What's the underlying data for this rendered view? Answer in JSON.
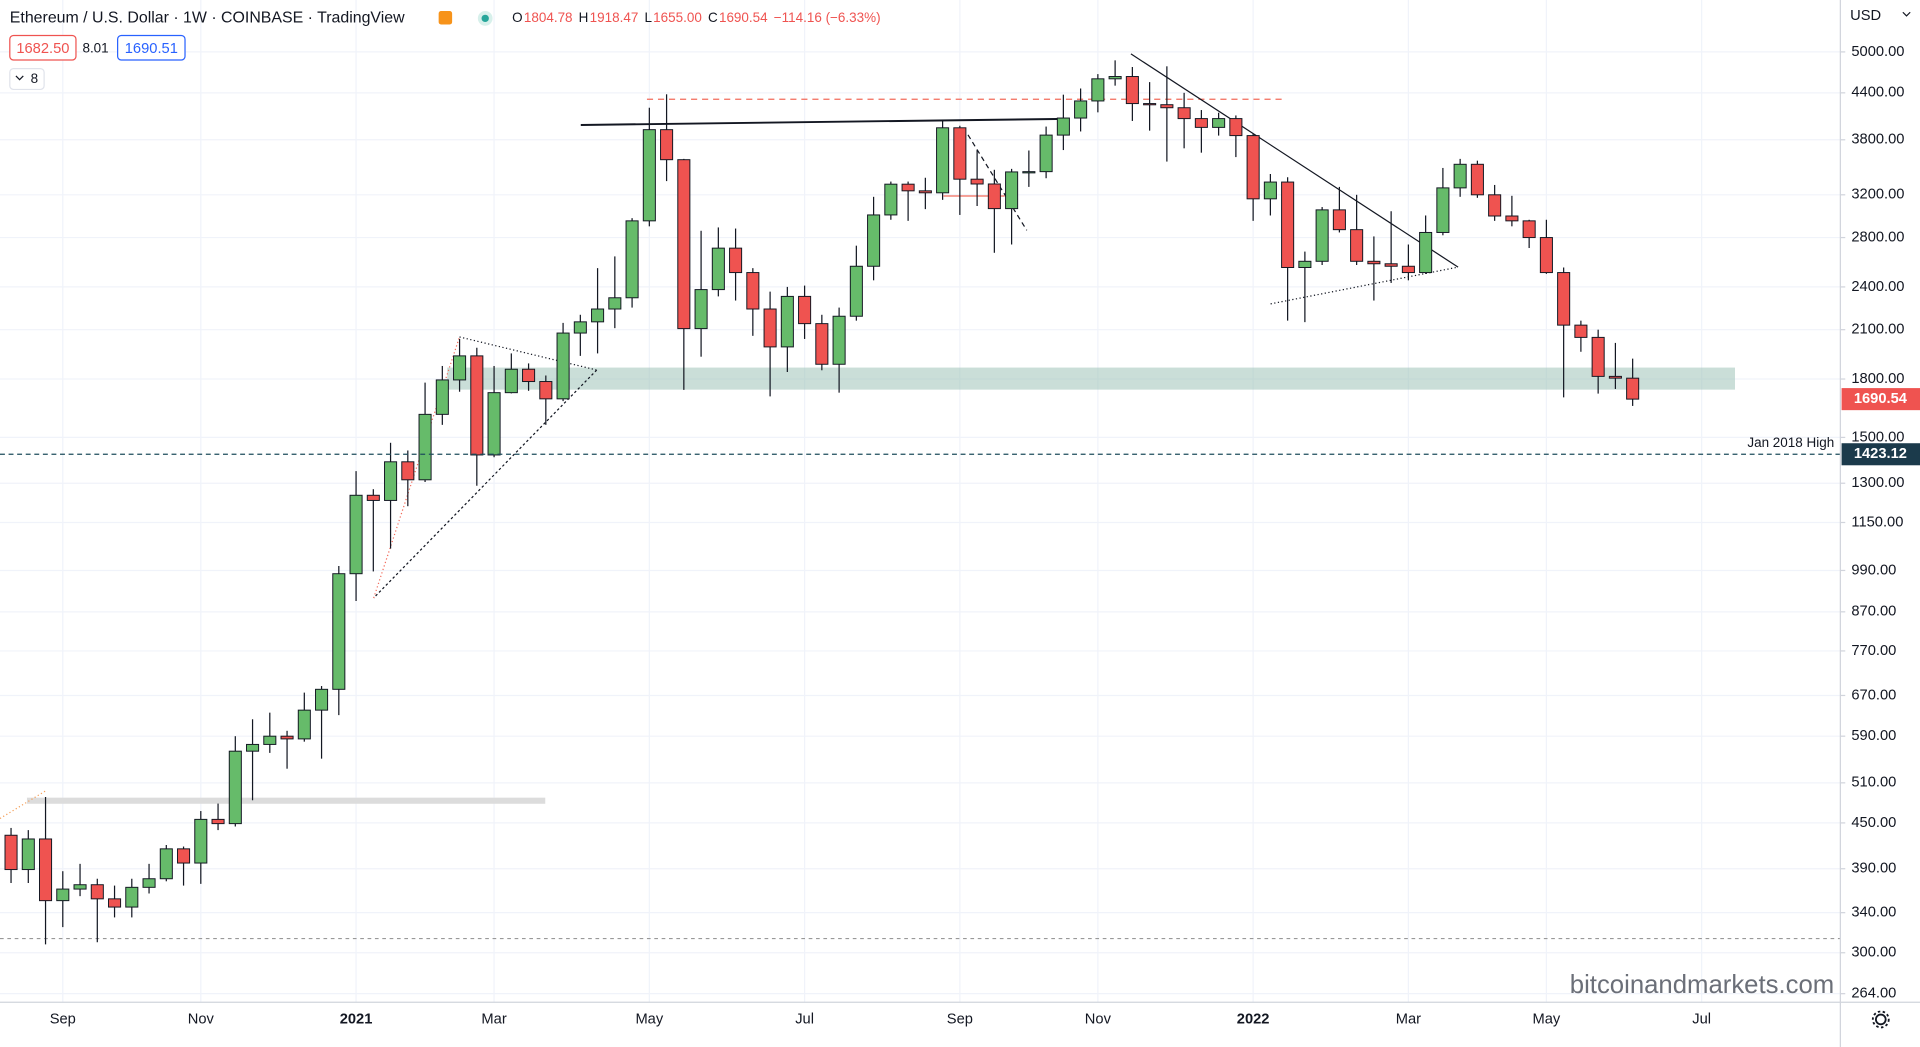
{
  "header": {
    "title": "Ethereum / U.S. Dollar · 1W · COINBASE · TradingView",
    "ohlc": [
      {
        "label": "O",
        "value": "1804.78"
      },
      {
        "label": "H",
        "value": "1918.47"
      },
      {
        "label": "L",
        "value": "1655.00"
      },
      {
        "label": "C",
        "value": "1690.54"
      }
    ],
    "change": "−114.16 (−6.33%)",
    "sell": "1682.50",
    "spread": "8.01",
    "buy": "1690.51",
    "indicators": "8",
    "currency": "USD",
    "watermark": "bitcoinandmarkets.com"
  },
  "chart_data": {
    "type": "candlestick",
    "log_scale": true,
    "grid": true,
    "up_color": "#66bb6a",
    "down_color": "#ef5350",
    "xlim": [
      -0.64,
      106.04
    ],
    "xticks": [
      {
        "value": 3,
        "label": "Sep"
      },
      {
        "value": 11,
        "label": "Nov"
      },
      {
        "value": 20,
        "label": "2021"
      },
      {
        "value": 28,
        "label": "Mar"
      },
      {
        "value": 37,
        "label": "May"
      },
      {
        "value": 46,
        "label": "Jul"
      },
      {
        "value": 55,
        "label": "Sep"
      },
      {
        "value": 63,
        "label": "Nov"
      },
      {
        "value": 72,
        "label": "2022"
      },
      {
        "value": 81,
        "label": "Mar"
      },
      {
        "value": 89,
        "label": "May"
      },
      {
        "value": 98,
        "label": "Jul"
      }
    ],
    "ylim": [
      257,
      5880
    ],
    "yticks": [
      {
        "value": 5000,
        "label": "5000.00"
      },
      {
        "value": 4400,
        "label": "4400.00"
      },
      {
        "value": 3800,
        "label": "3800.00"
      },
      {
        "value": 3200,
        "label": "3200.00"
      },
      {
        "value": 2800,
        "label": "2800.00"
      },
      {
        "value": 2400,
        "label": "2400.00"
      },
      {
        "value": 2100,
        "label": "2100.00"
      },
      {
        "value": 1800,
        "label": "1800.00"
      },
      {
        "value": 1500,
        "label": "1500.00"
      },
      {
        "value": 1300,
        "label": "1300.00"
      },
      {
        "value": 1150,
        "label": "1150.00"
      },
      {
        "value": 990,
        "label": "990.00"
      },
      {
        "value": 870,
        "label": "870.00"
      },
      {
        "value": 770,
        "label": "770.00"
      },
      {
        "value": 670,
        "label": "670.00"
      },
      {
        "value": 590,
        "label": "590.00"
      },
      {
        "value": 510,
        "label": "510.00"
      },
      {
        "value": 450,
        "label": "450.00"
      },
      {
        "value": 390,
        "label": "390.00"
      },
      {
        "value": 340,
        "label": "340.00"
      },
      {
        "value": 300,
        "label": "300.00"
      },
      {
        "value": 264,
        "label": "264.00"
      }
    ],
    "open": [
      433,
      389,
      428,
      353,
      366,
      371,
      355,
      346,
      368,
      378,
      415,
      397,
      455,
      449,
      563,
      575,
      590,
      585,
      640,
      683,
      980,
      1252,
      1232,
      1390,
      1314,
      1612,
      1795,
      1935,
      1420,
      1725,
      1856,
      1786,
      1692,
      2078,
      2152,
      2240,
      2320,
      2950,
      3922,
      3571,
      2107,
      2380,
      2709,
      2510,
      2240,
      1990,
      2330,
      2140,
      1885,
      2190,
      2560,
      3005,
      3308,
      3240,
      3220,
      3945,
      3360,
      3310,
      3065,
      3437,
      3440,
      3856,
      4067,
      4290,
      4597,
      4630,
      4255,
      4240,
      4200,
      4060,
      3950,
      4060,
      3850,
      3160,
      3330,
      2550,
      2600,
      3053,
      2870,
      2600,
      2580,
      2560,
      2510,
      2845,
      3270,
      3520,
      3200,
      2995,
      2950,
      2800,
      2510,
      2130,
      2050,
      1815,
      1804.78
    ],
    "high": [
      443,
      440,
      488,
      387,
      396,
      378,
      370,
      378,
      396,
      420,
      418,
      467,
      478,
      590,
      622,
      635,
      600,
      676,
      690,
      1004,
      1350,
      1276,
      1475,
      1440,
      1780,
      1875,
      2040,
      1985,
      1875,
      1950,
      1890,
      1820,
      2145,
      2200,
      2545,
      2640,
      2975,
      4200,
      4380,
      3580,
      2860,
      2890,
      2880,
      2545,
      2365,
      2400,
      2410,
      2200,
      2250,
      2730,
      3180,
      3335,
      3335,
      3375,
      4030,
      3970,
      3680,
      3460,
      3470,
      3675,
      3960,
      4375,
      4460,
      4665,
      4870,
      4770,
      4550,
      4780,
      4400,
      4170,
      4135,
      4100,
      3875,
      3415,
      3380,
      2680,
      3080,
      3280,
      3200,
      2810,
      3040,
      2740,
      3000,
      3480,
      3580,
      3560,
      3300,
      3190,
      2960,
      2960,
      2550,
      2160,
      2100,
      2015,
      1918.47
    ],
    "low": [
      373,
      373,
      308,
      325,
      358,
      310,
      335,
      335,
      361,
      375,
      370,
      372,
      440,
      445,
      483,
      560,
      533,
      580,
      550,
      630,
      900,
      987,
      1060,
      1210,
      1305,
      1560,
      1730,
      1290,
      1410,
      1721,
      1735,
      1560,
      1680,
      1935,
      1950,
      2110,
      2250,
      2900,
      3340,
      1740,
      1930,
      2330,
      2300,
      2060,
      1705,
      1840,
      2040,
      1850,
      1725,
      2160,
      2450,
      2960,
      2950,
      3060,
      3150,
      3005,
      3090,
      2670,
      2740,
      3280,
      3370,
      3680,
      3900,
      4140,
      4500,
      4030,
      3910,
      3550,
      3700,
      3650,
      3850,
      3600,
      2950,
      3000,
      2160,
      2150,
      2570,
      2845,
      2570,
      2300,
      2430,
      2450,
      2500,
      2820,
      3180,
      3170,
      2950,
      2900,
      2710,
      2500,
      1700,
      1960,
      1720,
      1745,
      1655.0
    ],
    "close": [
      389,
      428,
      353,
      366,
      371,
      355,
      346,
      368,
      378,
      415,
      397,
      455,
      449,
      563,
      575,
      590,
      585,
      640,
      683,
      980,
      1252,
      1232,
      1390,
      1314,
      1612,
      1795,
      1935,
      1420,
      1725,
      1856,
      1786,
      1692,
      2078,
      2152,
      2240,
      2320,
      2950,
      3922,
      3571,
      2107,
      2380,
      2709,
      2510,
      2240,
      1990,
      2330,
      2140,
      1885,
      2190,
      2560,
      3005,
      3308,
      3240,
      3220,
      3945,
      3360,
      3310,
      3065,
      3437,
      3440,
      3856,
      4067,
      4290,
      4597,
      4630,
      4255,
      4240,
      4200,
      4060,
      3950,
      4060,
      3850,
      3160,
      3330,
      2550,
      2600,
      3053,
      2870,
      2600,
      2580,
      2560,
      2510,
      2845,
      3270,
      3520,
      3200,
      2995,
      2950,
      2800,
      2510,
      2130,
      2050,
      1815,
      1805,
      1690.54
    ],
    "annotations": [
      {
        "label": "Jan 2018 High",
        "value": 1423.12
      }
    ]
  }
}
